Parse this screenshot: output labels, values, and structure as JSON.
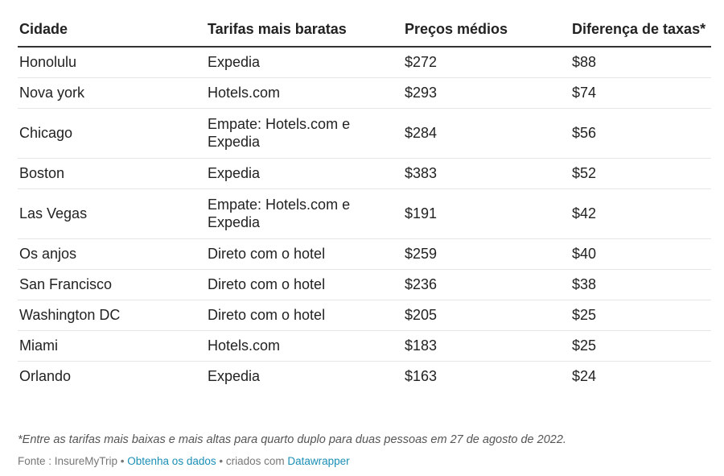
{
  "chart_data": {
    "type": "table",
    "columns": [
      "Cidade",
      "Tarifas mais baratas",
      "Preços médios",
      "Diferença de taxas*"
    ],
    "rows": [
      [
        "Honolulu",
        "Expedia",
        "$272",
        "$88"
      ],
      [
        "Nova york",
        "Hotels.com",
        "$293",
        "$74"
      ],
      [
        "Chicago",
        "Empate: Hotels.com e Expedia",
        "$284",
        "$56"
      ],
      [
        "Boston",
        "Expedia",
        "$383",
        "$52"
      ],
      [
        "Las Vegas",
        "Empate: Hotels.com e Expedia",
        "$191",
        "$42"
      ],
      [
        "Os anjos",
        "Direto com o hotel",
        "$259",
        "$40"
      ],
      [
        "San Francisco",
        "Direto com o hotel",
        "$236",
        "$38"
      ],
      [
        "Washington DC",
        "Direto com o hotel",
        "$205",
        "$25"
      ],
      [
        "Miami",
        "Hotels.com",
        "$183",
        "$25"
      ],
      [
        "Orlando",
        "Expedia",
        "$163",
        "$24"
      ]
    ],
    "footnote": "*Entre as tarifas mais baixas e mais altas para quarto duplo para duas pessoas em 27 de agosto de 2022.",
    "source": {
      "prefix": "Fonte : InsureMyTrip • ",
      "get_data_link": "Obtenha os dados",
      "middle": " • criados com ",
      "tool_link": "Datawrapper"
    }
  },
  "colors": {
    "text": "#222222",
    "link": "#1a8fb5",
    "header_rule": "#333333",
    "row_rule": "#e6e6e6"
  }
}
